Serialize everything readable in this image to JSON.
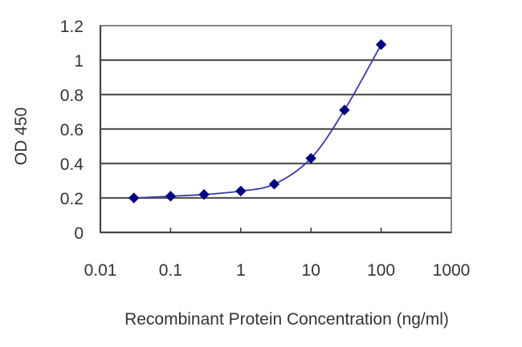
{
  "chart_data": {
    "type": "line",
    "title": "",
    "xlabel": "Recombinant Protein Concentration (ng/ml)",
    "ylabel": "OD 450",
    "x_scale": "log",
    "xlim": [
      0.01,
      1000
    ],
    "ylim": [
      0,
      1.2
    ],
    "x_ticks": [
      "0.01",
      "0.1",
      "1",
      "10",
      "100",
      "1000"
    ],
    "y_ticks": [
      "0",
      "0.2",
      "0.4",
      "0.6",
      "0.8",
      "1",
      "1.2"
    ],
    "grid": {
      "horizontal": true,
      "vertical": false
    },
    "legend": null,
    "series": [
      {
        "name": "OD 450",
        "marker": "diamond",
        "x": [
          0.03,
          0.1,
          0.3,
          1,
          3,
          10,
          30,
          100
        ],
        "values": [
          0.2,
          0.21,
          0.22,
          0.24,
          0.28,
          0.43,
          0.71,
          1.09
        ]
      }
    ],
    "colors": {
      "marker": "#000080",
      "line": "#3a3aa8",
      "grid": "#555555",
      "frame": "#888888"
    }
  }
}
